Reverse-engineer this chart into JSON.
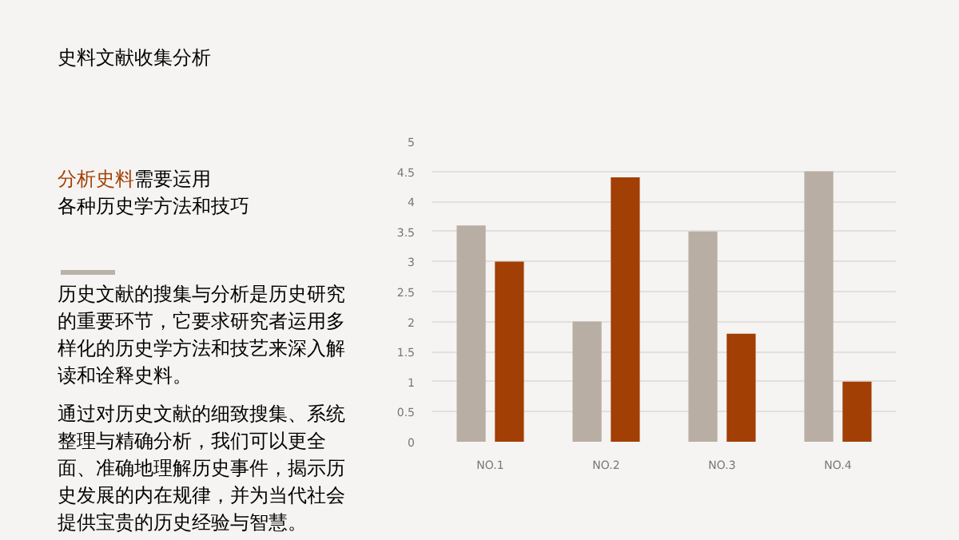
{
  "chart_data": {
    "type": "bar",
    "title": "史料文献收集分析",
    "subtitle": "分析史料需要运用各种历史学方法和技巧",
    "annotations": [
      "历史文献的搜集与分析是历史研究的重要环节，它要求研究者运用多样化的历史学方法和技艺来深入解读和诠释史料。",
      "通过对历史文献的细致搜集、系统整理与精确分析，我们可以更全面、准确地理解历史事件，揭示历史发展的内在规律，并为当代社会提供宝贵的历史经验与智慧。"
    ],
    "categories": [
      "NO.1",
      "NO.2",
      "NO.3",
      "NO.4"
    ],
    "series": [
      {
        "color": "#b9aea4",
        "values": [
          3.6,
          2.0,
          3.5,
          4.5
        ]
      },
      {
        "color": "#a23f05",
        "values": [
          3.0,
          4.4,
          1.8,
          1.0
        ]
      }
    ],
    "ylim": [
      0,
      5
    ],
    "yticks": [
      0,
      0.5,
      1,
      1.5,
      2,
      2.5,
      3,
      3.5,
      4,
      4.5,
      5
    ],
    "grid": "y"
  }
}
